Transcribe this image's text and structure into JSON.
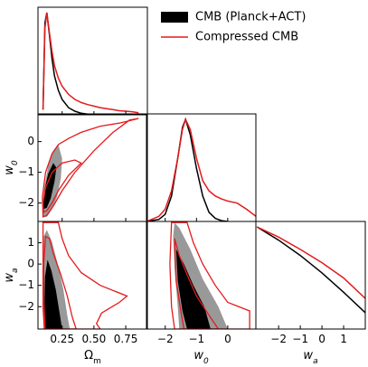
{
  "chart_data": {
    "type": "corner",
    "parameters": [
      {
        "name": "Omega_m",
        "label": "Ω",
        "sub": "m",
        "range": [
          0.06,
          0.92
        ],
        "ticks": [
          0.25,
          0.5,
          0.75
        ],
        "tick_labels": [
          "0.25",
          "0.50",
          "0.75"
        ]
      },
      {
        "name": "w0",
        "label": "w",
        "sub": "0",
        "range": [
          -2.6,
          0.9
        ],
        "ticks": [
          -2,
          -1,
          0
        ],
        "tick_labels": [
          "−2",
          "−1",
          "0"
        ]
      },
      {
        "name": "wa",
        "label": "w",
        "sub": "a",
        "range": [
          -3.05,
          2.0
        ],
        "ticks": [
          -2,
          -1,
          0,
          1
        ],
        "tick_labels": [
          "−2",
          "−1",
          "0",
          "1"
        ]
      }
    ],
    "legend": {
      "position": "top-right",
      "entries": [
        {
          "name": "CMB (Planck+ACT)",
          "style": "filled",
          "color": "#000000"
        },
        {
          "name": "Compressed CMB",
          "style": "line",
          "color": "#e41a1c"
        }
      ]
    },
    "series": [
      {
        "name": "CMB (Planck+ACT)",
        "color": "#000000",
        "inner_color": "#000000",
        "outer_color": "#999999",
        "marginals": {
          "Omega_m": {
            "x": [
              0.1,
              0.115,
              0.13,
              0.15,
              0.17,
              0.19,
              0.22,
              0.25,
              0.3,
              0.35,
              0.4,
              0.45,
              0.5
            ],
            "y": [
              0.05,
              0.9,
              1.0,
              0.78,
              0.55,
              0.38,
              0.24,
              0.15,
              0.07,
              0.035,
              0.015,
              0.006,
              0.002
            ]
          },
          "w0": {
            "x": [
              -2.6,
              -2.2,
              -2.0,
              -1.8,
              -1.6,
              -1.45,
              -1.35,
              -1.2,
              -1.0,
              -0.8,
              -0.6,
              -0.4,
              -0.2,
              0.0
            ],
            "y": [
              0.0,
              0.02,
              0.07,
              0.25,
              0.62,
              0.92,
              1.0,
              0.85,
              0.52,
              0.25,
              0.09,
              0.03,
              0.008,
              0.0
            ]
          },
          "wa": {
            "x": [
              -3.0,
              -2.0,
              -1.0,
              0.0,
              1.0,
              2.0
            ],
            "y": [
              1.0,
              0.87,
              0.72,
              0.55,
              0.36,
              0.16
            ]
          }
        },
        "contours": {
          "w0_vs_Omega_m": {
            "outer": [
              [
                0.1,
                -2.45
              ],
              [
                0.13,
                -2.45
              ],
              [
                0.17,
                -2.2
              ],
              [
                0.21,
                -1.8
              ],
              [
                0.24,
                -1.2
              ],
              [
                0.25,
                -0.55
              ],
              [
                0.22,
                -0.1
              ],
              [
                0.18,
                -0.3
              ],
              [
                0.14,
                -0.8
              ],
              [
                0.11,
                -1.5
              ],
              [
                0.095,
                -2.1
              ]
            ],
            "inner": [
              [
                0.105,
                -2.2
              ],
              [
                0.13,
                -2.15
              ],
              [
                0.16,
                -1.85
              ],
              [
                0.19,
                -1.3
              ],
              [
                0.205,
                -0.85
              ],
              [
                0.18,
                -0.7
              ],
              [
                0.14,
                -1.05
              ],
              [
                0.115,
                -1.5
              ],
              [
                0.1,
                -1.95
              ]
            ]
          },
          "wa_vs_Omega_m": {
            "outer": [
              [
                0.11,
                -3.05
              ],
              [
                0.31,
                -3.05
              ],
              [
                0.29,
                -2.4
              ],
              [
                0.26,
                -1.2
              ],
              [
                0.22,
                -0.1
              ],
              [
                0.17,
                1.05
              ],
              [
                0.13,
                1.6
              ],
              [
                0.105,
                1.3
              ],
              [
                0.1,
                0.3
              ],
              [
                0.1,
                -1.5
              ]
            ],
            "inner": [
              [
                0.12,
                -3.05
              ],
              [
                0.25,
                -3.05
              ],
              [
                0.23,
                -2.3
              ],
              [
                0.2,
                -1.2
              ],
              [
                0.165,
                -0.3
              ],
              [
                0.135,
                0.2
              ],
              [
                0.115,
                -0.6
              ],
              [
                0.11,
                -2.0
              ]
            ]
          },
          "wa_vs_w0": {
            "outer": [
              [
                -1.7,
                1.95
              ],
              [
                -1.55,
                1.7
              ],
              [
                -1.2,
                0.7
              ],
              [
                -0.8,
                -0.7
              ],
              [
                -0.3,
                -2.0
              ],
              [
                0.0,
                -3.05
              ],
              [
                -1.55,
                -3.05
              ],
              [
                -1.6,
                -2.0
              ],
              [
                -1.7,
                -0.2
              ],
              [
                -1.75,
                1.3
              ]
            ],
            "inner": [
              [
                -1.65,
                0.7
              ],
              [
                -1.4,
                0.0
              ],
              [
                -1.1,
                -1.0
              ],
              [
                -0.75,
                -2.0
              ],
              [
                -0.55,
                -3.05
              ],
              [
                -1.3,
                -3.05
              ],
              [
                -1.45,
                -2.2
              ],
              [
                -1.6,
                -0.8
              ]
            ]
          }
        }
      },
      {
        "name": "Compressed CMB",
        "color": "#e41a1c",
        "marginals": {
          "Omega_m": {
            "x": [
              0.1,
              0.115,
              0.13,
              0.15,
              0.17,
              0.19,
              0.22,
              0.25,
              0.3,
              0.35,
              0.4,
              0.45,
              0.5,
              0.55,
              0.6,
              0.65,
              0.7,
              0.75,
              0.8,
              0.85
            ],
            "y": [
              0.05,
              0.85,
              1.0,
              0.8,
              0.62,
              0.48,
              0.36,
              0.28,
              0.2,
              0.15,
              0.12,
              0.1,
              0.085,
              0.07,
              0.06,
              0.05,
              0.04,
              0.035,
              0.03,
              0.02
            ]
          },
          "w0": {
            "x": [
              -2.6,
              -2.2,
              -2.0,
              -1.8,
              -1.6,
              -1.45,
              -1.35,
              -1.2,
              -1.0,
              -0.8,
              -0.6,
              -0.4,
              -0.2,
              0.0,
              0.3,
              0.6,
              0.9
            ],
            "y": [
              0.0,
              0.05,
              0.12,
              0.3,
              0.62,
              0.9,
              1.0,
              0.9,
              0.62,
              0.4,
              0.3,
              0.25,
              0.22,
              0.2,
              0.18,
              0.12,
              0.05
            ]
          },
          "wa": {
            "x": [
              -3.0,
              -2.0,
              -1.0,
              0.0,
              1.0,
              2.0
            ],
            "y": [
              1.0,
              0.9,
              0.78,
              0.65,
              0.5,
              0.3
            ]
          }
        },
        "contours": {
          "w0_vs_Omega_m": {
            "outer": [
              [
                0.1,
                -2.45
              ],
              [
                0.13,
                -2.4
              ],
              [
                0.18,
                -2.1
              ],
              [
                0.25,
                -1.6
              ],
              [
                0.35,
                -1.0
              ],
              [
                0.5,
                -0.3
              ],
              [
                0.65,
                0.3
              ],
              [
                0.78,
                0.7
              ],
              [
                0.85,
                0.75
              ],
              [
                0.7,
                0.6
              ],
              [
                0.55,
                0.5
              ],
              [
                0.4,
                0.3
              ],
              [
                0.3,
                0.1
              ],
              [
                0.22,
                -0.1
              ],
              [
                0.17,
                -0.4
              ],
              [
                0.12,
                -1.0
              ],
              [
                0.095,
                -1.8
              ]
            ],
            "inner": [
              [
                0.105,
                -2.3
              ],
              [
                0.13,
                -2.25
              ],
              [
                0.17,
                -2.0
              ],
              [
                0.22,
                -1.6
              ],
              [
                0.3,
                -1.1
              ],
              [
                0.4,
                -0.7
              ],
              [
                0.35,
                -0.6
              ],
              [
                0.25,
                -0.7
              ],
              [
                0.17,
                -1.0
              ],
              [
                0.12,
                -1.5
              ],
              [
                0.1,
                -2.0
              ]
            ]
          },
          "wa_vs_Omega_m": {
            "outer": [
              [
                0.11,
                -3.05
              ],
              [
                0.55,
                -3.05
              ],
              [
                0.52,
                -2.8
              ],
              [
                0.56,
                -2.3
              ],
              [
                0.7,
                -1.8
              ],
              [
                0.76,
                -1.5
              ],
              [
                0.55,
                -1.0
              ],
              [
                0.4,
                -0.4
              ],
              [
                0.3,
                0.4
              ],
              [
                0.25,
                1.2
              ],
              [
                0.22,
                1.95
              ],
              [
                0.1,
                1.95
              ],
              [
                0.1,
                0.0
              ],
              [
                0.1,
                -2.0
              ]
            ],
            "inner": [
              [
                0.115,
                -3.05
              ],
              [
                0.36,
                -3.05
              ],
              [
                0.33,
                -2.5
              ],
              [
                0.29,
                -1.5
              ],
              [
                0.24,
                -0.5
              ],
              [
                0.18,
                0.5
              ],
              [
                0.15,
                1.2
              ],
              [
                0.12,
                1.3
              ],
              [
                0.105,
                0.0
              ],
              [
                0.105,
                -1.5
              ]
            ]
          },
          "wa_vs_w0": {
            "outer": [
              [
                -1.8,
                1.95
              ],
              [
                -1.3,
                1.95
              ],
              [
                -1.1,
                1.0
              ],
              [
                -0.8,
                0.0
              ],
              [
                -0.4,
                -1.0
              ],
              [
                0.0,
                -1.8
              ],
              [
                0.7,
                -2.2
              ],
              [
                0.7,
                -3.05
              ],
              [
                -1.7,
                -3.05
              ],
              [
                -1.8,
                -2.0
              ],
              [
                -1.85,
                0.0
              ]
            ],
            "inner": [
              [
                -1.7,
                1.2
              ],
              [
                -1.55,
                0.4
              ],
              [
                -1.3,
                -0.5
              ],
              [
                -1.0,
                -1.5
              ],
              [
                -0.6,
                -2.4
              ],
              [
                -0.3,
                -3.05
              ],
              [
                -1.4,
                -3.05
              ],
              [
                -1.5,
                -2.2
              ],
              [
                -1.65,
                -0.8
              ]
            ]
          }
        }
      }
    ]
  }
}
